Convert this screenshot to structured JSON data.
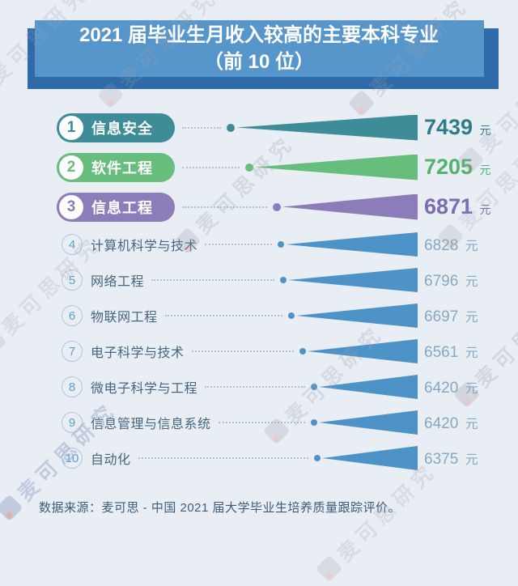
{
  "title": {
    "line1": "2021 届毕业生月收入较高的主要本科专业",
    "line2": "（前 10 位）",
    "box_color": "#5796CB",
    "shadow_color": "#2F6BA8"
  },
  "watermark": {
    "text": "麦可思研究"
  },
  "unit": "元",
  "rows": [
    {
      "rank": "1",
      "label": "信息安全",
      "value": 7439,
      "color": "#3E8C97",
      "value_color": "#2E7D8A",
      "top3": true
    },
    {
      "rank": "2",
      "label": "软件工程",
      "value": 7205,
      "color": "#66BD7C",
      "value_color": "#53B36E",
      "top3": true
    },
    {
      "rank": "3",
      "label": "信息工程",
      "value": 6871,
      "color": "#8C7CBA",
      "value_color": "#7C6DB2",
      "top3": true
    },
    {
      "rank": "4",
      "label": "计算机科学与技术",
      "value": 6828,
      "color": "#4E93C8",
      "value_color": "#85A9C2",
      "top3": false
    },
    {
      "rank": "5",
      "label": "网络工程",
      "value": 6796,
      "color": "#4E93C8",
      "value_color": "#85A9C2",
      "top3": false
    },
    {
      "rank": "6",
      "label": "物联网工程",
      "value": 6697,
      "color": "#4E93C8",
      "value_color": "#85A9C2",
      "top3": false
    },
    {
      "rank": "7",
      "label": "电子科学与技术",
      "value": 6561,
      "color": "#4E93C8",
      "value_color": "#85A9C2",
      "top3": false
    },
    {
      "rank": "8",
      "label": "微电子科学与工程",
      "value": 6420,
      "color": "#4E93C8",
      "value_color": "#85A9C2",
      "top3": false
    },
    {
      "rank": "9",
      "label": "信息管理与信息系统",
      "value": 6420,
      "color": "#4E93C8",
      "value_color": "#85A9C2",
      "top3": false
    },
    {
      "rank": "10",
      "label": "自动化",
      "value": 6375,
      "color": "#4E93C8",
      "value_color": "#85A9C2",
      "top3": false
    }
  ],
  "footer": {
    "source": "数据来源：麦可思 - 中国 2021 届大学毕业生培养质量跟踪评价。"
  },
  "chart_data": {
    "type": "bar",
    "orientation": "horizontal",
    "title": "2021 届毕业生月收入较高的主要本科专业（前 10 位）",
    "categories": [
      "信息安全",
      "软件工程",
      "信息工程",
      "计算机科学与技术",
      "网络工程",
      "物联网工程",
      "电子科学与技术",
      "微电子科学与工程",
      "信息管理与信息系统",
      "自动化"
    ],
    "values": [
      7439,
      7205,
      6871,
      6828,
      6796,
      6697,
      6561,
      6420,
      6420,
      6375
    ],
    "ranks": [
      1,
      2,
      3,
      4,
      5,
      6,
      7,
      8,
      9,
      10
    ],
    "unit": "元",
    "highlighted_top3_colors": [
      "#3E8C97",
      "#66BD7C",
      "#8C7CBA"
    ],
    "bar_color": "#4E93C8",
    "legend": false,
    "grid": false,
    "source": "数据来源：麦可思 - 中国 2021 届大学毕业生培养质量跟踪评价。"
  }
}
